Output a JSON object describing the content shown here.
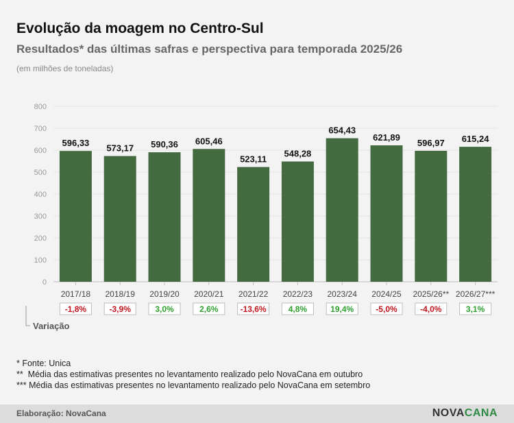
{
  "header": {
    "title": "Evolução da moagem no Centro-Sul",
    "subtitle": "Resultados* das últimas safras e perspectiva para temporada 2025/26",
    "unit": "(em milhões de toneladas)"
  },
  "chart_data": {
    "type": "bar",
    "categories": [
      "2017/18",
      "2018/19",
      "2019/20",
      "2020/21",
      "2021/22",
      "2022/23",
      "2023/24",
      "2024/25",
      "2025/26**",
      "2026/27***"
    ],
    "values": [
      596.33,
      573.17,
      590.36,
      605.46,
      523.11,
      548.28,
      654.43,
      621.89,
      596.97,
      615.24
    ],
    "value_labels": [
      "596,33",
      "573,17",
      "590,36",
      "605,46",
      "523,11",
      "548,28",
      "654,43",
      "621,89",
      "596,97",
      "615,24"
    ],
    "variation_label": "Variação",
    "variations": [
      "-1,8%",
      "-3,9%",
      "3,0%",
      "2,6%",
      "-13,6%",
      "4,8%",
      "19,4%",
      "-5,0%",
      "-4,0%",
      "3,1%"
    ],
    "ylim": [
      0,
      800
    ],
    "yticks": [
      "0",
      "100",
      "200",
      "300",
      "400",
      "500",
      "600",
      "700",
      "800"
    ],
    "grid": true,
    "colors": {
      "bar": "#446b40",
      "negative": "#c0141c",
      "positive": "#2ea02e"
    }
  },
  "notes": [
    "* Fonte: Unica",
    "**  Média das estimativas presentes no levantamento realizado pelo NovaCana em outubro",
    "*** Média das estimativas presentes no levantamento realizado pelo NovaCana em setembro"
  ],
  "footer": {
    "credit": "Elaboração: NovaCana",
    "logo_part1": "NOVA",
    "logo_part2": "CANA"
  }
}
